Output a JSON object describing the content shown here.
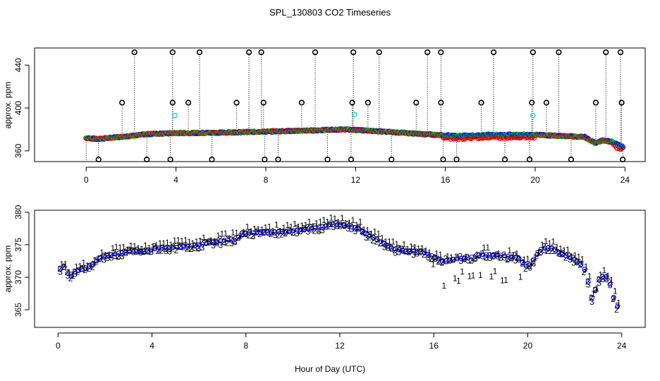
{
  "figure_title": "SPL_130803  CO2 Timeseries",
  "shared_xlabel": "Hour of Day (UTC)",
  "colors": {
    "series1": "#e00000",
    "series2": "#00cc00",
    "series3": "#0000ff",
    "outlier": "#000000",
    "cyan": "#00cccc"
  },
  "chart_data": [
    {
      "type": "scatter",
      "title": "SPL_130803  CO2 Timeseries",
      "xlabel": "",
      "ylabel": "approx. ppm",
      "xlim": [
        -2.3,
        24.9
      ],
      "ylim": [
        350,
        456
      ],
      "xticks": [
        0,
        4,
        8,
        12,
        16,
        20,
        24
      ],
      "yticks": [
        360,
        400,
        440
      ],
      "baseline_anchors": [
        [
          0,
          372
        ],
        [
          0.5,
          371
        ],
        [
          1,
          372
        ],
        [
          2,
          374
        ],
        [
          3,
          376
        ],
        [
          4,
          376.5
        ],
        [
          6,
          377
        ],
        [
          8,
          378
        ],
        [
          10,
          379
        ],
        [
          11.5,
          380
        ],
        [
          12.5,
          379
        ],
        [
          14,
          377
        ],
        [
          15.5,
          375
        ],
        [
          16.5,
          374
        ],
        [
          18,
          375
        ],
        [
          20,
          375
        ],
        [
          21,
          374
        ],
        [
          22.2,
          373
        ],
        [
          22.7,
          367
        ],
        [
          23,
          370
        ],
        [
          23.5,
          368
        ],
        [
          23.8,
          364
        ]
      ],
      "outliers_high": [
        2.15,
        3.85,
        5.05,
        7.25,
        7.8,
        10.2,
        11.9,
        13.05,
        15.2,
        15.8,
        18.15,
        19.9,
        21.05,
        23.15,
        23.8
      ],
      "outliers_mid": [
        1.6,
        3.85,
        4.55,
        6.7,
        7.9,
        9.6,
        11.85,
        12.55,
        14.7,
        15.8,
        17.6,
        19.85,
        20.5,
        22.7,
        23.85
      ],
      "outliers_low": [
        0.55,
        2.7,
        3.75,
        5.6,
        7.95,
        8.55,
        10.75,
        11.8,
        13.6,
        15.9,
        16.5,
        18.65,
        19.75,
        21.6,
        23.9
      ],
      "outliers_marker_high_value": 452,
      "outliers_marker_mid_value": 405,
      "outliers_marker_low_value": 352,
      "cyan_points": [
        [
          3.95,
          393
        ],
        [
          11.95,
          394
        ],
        [
          19.9,
          393
        ]
      ],
      "series": [
        {
          "name": "1",
          "color": "#e00000"
        },
        {
          "name": "2",
          "color": "#00cc00"
        },
        {
          "name": "3",
          "color": "#0000ff"
        }
      ]
    },
    {
      "type": "scatter",
      "title": "",
      "xlabel": "Hour of Day (UTC)",
      "ylabel": "approx. ppm",
      "xlim": [
        -1.0,
        25.0
      ],
      "ylim": [
        362.3,
        380.3
      ],
      "xticks": [
        0,
        4,
        8,
        12,
        16,
        20,
        24
      ],
      "yticks": [
        365,
        370,
        375,
        380
      ],
      "series": [
        {
          "name": "1",
          "color": "#e00000",
          "marker": "1"
        },
        {
          "name": "2",
          "color": "#00cc00",
          "marker": "2"
        },
        {
          "name": "3",
          "color": "#0000ff",
          "marker": "3"
        }
      ],
      "anchors": [
        [
          0.1,
          371.3
        ],
        [
          0.3,
          371.6
        ],
        [
          0.5,
          369.8
        ],
        [
          0.7,
          370.8
        ],
        [
          1.0,
          371.2
        ],
        [
          1.3,
          371.6
        ],
        [
          1.5,
          372.0
        ],
        [
          1.8,
          373.0
        ],
        [
          2.0,
          373.2
        ],
        [
          2.3,
          373.5
        ],
        [
          2.8,
          373.8
        ],
        [
          3.2,
          374.0
        ],
        [
          3.8,
          374.0
        ],
        [
          4.2,
          374.5
        ],
        [
          5.0,
          374.6
        ],
        [
          6.0,
          375.0
        ],
        [
          6.8,
          375.5
        ],
        [
          7.6,
          376.0
        ],
        [
          8.0,
          376.8
        ],
        [
          8.8,
          376.9
        ],
        [
          9.5,
          377.0
        ],
        [
          10.3,
          377.3
        ],
        [
          11.0,
          377.6
        ],
        [
          11.6,
          378.1
        ],
        [
          12.2,
          378.0
        ],
        [
          12.8,
          377.5
        ],
        [
          13.2,
          376.5
        ],
        [
          13.6,
          375.8
        ],
        [
          14.2,
          374.5
        ],
        [
          14.8,
          374.0
        ],
        [
          15.4,
          374.0
        ],
        [
          15.8,
          373.5
        ],
        [
          16.1,
          373.0
        ],
        [
          16.4,
          372.5
        ],
        [
          16.9,
          372.8
        ],
        [
          17.5,
          373.0
        ],
        [
          18.0,
          373.5
        ],
        [
          18.6,
          373.5
        ],
        [
          19.2,
          373.2
        ],
        [
          19.6,
          373.0
        ],
        [
          20.0,
          371.5
        ],
        [
          20.3,
          373.0
        ],
        [
          20.6,
          374.5
        ],
        [
          21.0,
          374.5
        ],
        [
          21.5,
          373.5
        ],
        [
          22.1,
          372.5
        ],
        [
          22.4,
          371.5
        ],
        [
          22.6,
          369.0
        ],
        [
          22.75,
          366.5
        ],
        [
          23.0,
          369.5
        ],
        [
          23.3,
          370.5
        ],
        [
          23.5,
          369.0
        ],
        [
          23.65,
          367.0
        ],
        [
          23.8,
          365.5
        ]
      ],
      "red_drop_anchors": [
        [
          15.95,
          373.5
        ],
        [
          16.2,
          369.5
        ],
        [
          16.5,
          371.0
        ],
        [
          16.9,
          370.5
        ],
        [
          17.4,
          371.5
        ],
        [
          17.9,
          371.0
        ],
        [
          18.4,
          371.5
        ],
        [
          18.9,
          370.5
        ],
        [
          19.3,
          371.0
        ],
        [
          19.7,
          370.5
        ]
      ]
    }
  ]
}
